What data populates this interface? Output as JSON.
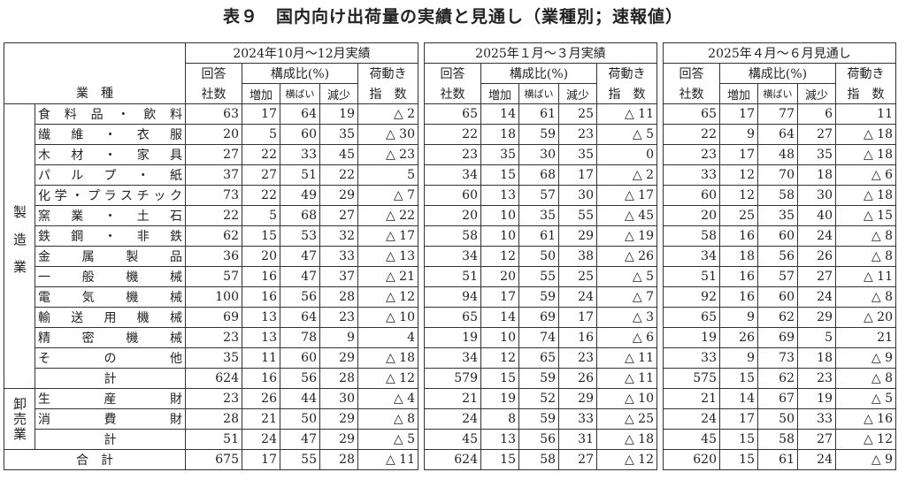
{
  "title": "表９　国内向け出荷量の実績と見通し（業種別；速報値）",
  "header": {
    "industry": "業　種",
    "periods": [
      "2024年10月～12月実績",
      "2025年１月～３月実績",
      "2025年４月～６月見通し"
    ],
    "resp1": "回答",
    "resp2": "社数",
    "comp": "構成比(%)",
    "inc": "増加",
    "flat": "横ばい",
    "dec": "減少",
    "idx1": "荷動き",
    "idx2": "指　数"
  },
  "sections": {
    "mfg": "製造業",
    "wholesale": "卸売業"
  },
  "mfg_rows": [
    {
      "label": "食料品・飲料",
      "v": [
        "63",
        "17",
        "64",
        "19",
        "△ 2",
        "65",
        "14",
        "61",
        "25",
        "△ 11",
        "65",
        "17",
        "77",
        "6",
        "11"
      ]
    },
    {
      "label": "繊維・衣服",
      "v": [
        "20",
        "5",
        "60",
        "35",
        "△ 30",
        "22",
        "18",
        "59",
        "23",
        "△ 5",
        "22",
        "9",
        "64",
        "27",
        "△ 18"
      ]
    },
    {
      "label": "木材・家具",
      "v": [
        "27",
        "22",
        "33",
        "45",
        "△ 23",
        "23",
        "35",
        "30",
        "35",
        "0",
        "23",
        "17",
        "48",
        "35",
        "△ 18"
      ]
    },
    {
      "label": "パルプ・紙",
      "v": [
        "37",
        "27",
        "51",
        "22",
        "5",
        "34",
        "15",
        "68",
        "17",
        "△ 2",
        "33",
        "12",
        "70",
        "18",
        "△ 6"
      ]
    },
    {
      "label": "化学・プラスチック",
      "v": [
        "73",
        "22",
        "49",
        "29",
        "△ 7",
        "60",
        "13",
        "57",
        "30",
        "△ 17",
        "60",
        "12",
        "58",
        "30",
        "△ 18"
      ]
    },
    {
      "label": "窯業・土石",
      "v": [
        "22",
        "5",
        "68",
        "27",
        "△ 22",
        "20",
        "10",
        "35",
        "55",
        "△ 45",
        "20",
        "25",
        "35",
        "40",
        "△ 15"
      ]
    },
    {
      "label": "鉄鋼・非鉄",
      "v": [
        "62",
        "15",
        "53",
        "32",
        "△ 17",
        "58",
        "10",
        "61",
        "29",
        "△ 19",
        "58",
        "16",
        "60",
        "24",
        "△ 8"
      ]
    },
    {
      "label": "金属製品",
      "v": [
        "36",
        "20",
        "47",
        "33",
        "△ 13",
        "34",
        "12",
        "50",
        "38",
        "△ 26",
        "34",
        "18",
        "56",
        "26",
        "△ 8"
      ]
    },
    {
      "label": "一般機械",
      "v": [
        "57",
        "16",
        "47",
        "37",
        "△ 21",
        "51",
        "20",
        "55",
        "25",
        "△ 5",
        "51",
        "16",
        "57",
        "27",
        "△ 11"
      ]
    },
    {
      "label": "電気機械",
      "v": [
        "100",
        "16",
        "56",
        "28",
        "△ 12",
        "94",
        "17",
        "59",
        "24",
        "△ 7",
        "92",
        "16",
        "60",
        "24",
        "△ 8"
      ]
    },
    {
      "label": "輸送用機械",
      "v": [
        "69",
        "13",
        "64",
        "23",
        "△ 10",
        "65",
        "14",
        "69",
        "17",
        "△ 3",
        "65",
        "9",
        "62",
        "29",
        "△ 20"
      ]
    },
    {
      "label": "精密機械",
      "v": [
        "23",
        "13",
        "78",
        "9",
        "4",
        "19",
        "10",
        "74",
        "16",
        "△ 6",
        "19",
        "26",
        "69",
        "5",
        "21"
      ]
    },
    {
      "label": "その他",
      "v": [
        "35",
        "11",
        "60",
        "29",
        "△ 18",
        "34",
        "12",
        "65",
        "23",
        "△ 11",
        "33",
        "9",
        "73",
        "18",
        "△ 9"
      ]
    }
  ],
  "mfg_total": {
    "label": "計",
    "v": [
      "624",
      "16",
      "56",
      "28",
      "△ 12",
      "579",
      "15",
      "59",
      "26",
      "△ 11",
      "575",
      "15",
      "62",
      "23",
      "△ 8"
    ]
  },
  "wh_rows": [
    {
      "label": "生産財",
      "v": [
        "23",
        "26",
        "44",
        "30",
        "△ 4",
        "21",
        "19",
        "52",
        "29",
        "△ 10",
        "21",
        "14",
        "67",
        "19",
        "△ 5"
      ]
    },
    {
      "label": "消費財",
      "v": [
        "28",
        "21",
        "50",
        "29",
        "△ 8",
        "24",
        "8",
        "59",
        "33",
        "△ 25",
        "24",
        "17",
        "50",
        "33",
        "△ 16"
      ]
    }
  ],
  "wh_total": {
    "label": "計",
    "v": [
      "51",
      "24",
      "47",
      "29",
      "△ 5",
      "45",
      "13",
      "56",
      "31",
      "△ 18",
      "45",
      "15",
      "58",
      "27",
      "△ 12"
    ]
  },
  "grand_total": {
    "label": "合　計",
    "v": [
      "675",
      "17",
      "55",
      "28",
      "△ 11",
      "624",
      "15",
      "58",
      "27",
      "△ 12",
      "620",
      "15",
      "61",
      "24",
      "△ 9"
    ]
  }
}
